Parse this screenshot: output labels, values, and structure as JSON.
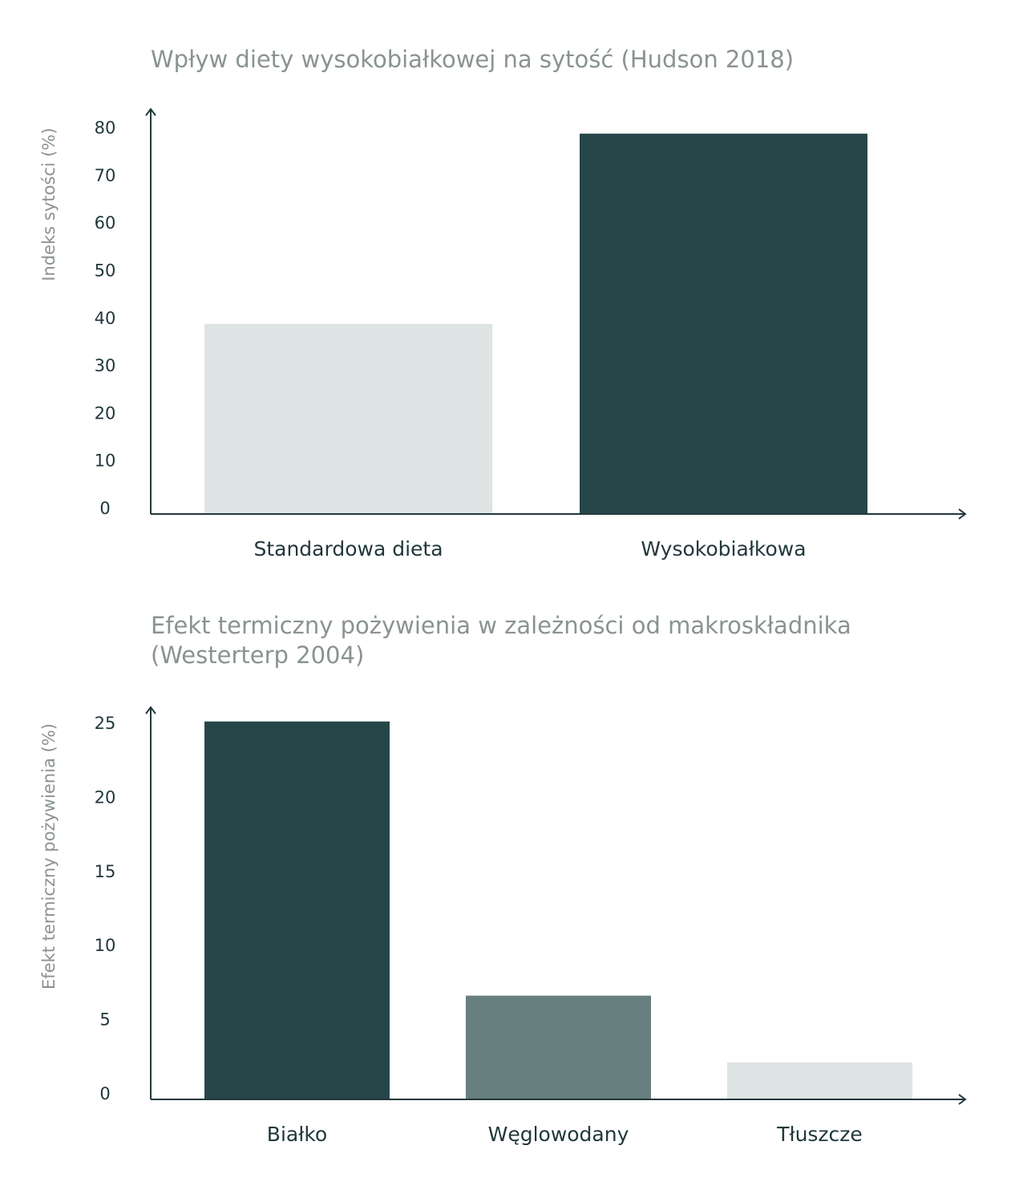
{
  "chart_data": [
    {
      "type": "bar",
      "title": "Wpływ diety wysokobiałkowej na sytość (Hudson 2018)",
      "xlabel": "",
      "ylabel": "Indeks sytości (%)",
      "categories": [
        "Standardowa dieta",
        "Wysokobiałkowa"
      ],
      "values": [
        40,
        80
      ],
      "bar_colors": [
        "#dde4e3",
        "#26464a"
      ],
      "yticks": [
        0,
        10,
        20,
        30,
        40,
        50,
        60,
        70,
        80
      ],
      "ylim": [
        0,
        85
      ],
      "grid": false,
      "legend": "none"
    },
    {
      "type": "bar",
      "title": "Efekt termiczny pożywienia w zależności od makroskładnika (Westerterp 2004)",
      "xlabel": "",
      "ylabel": "Efekt termiczny pożywienia (%)",
      "categories": [
        "Białko",
        "Węglowodany",
        "Tłuszcze"
      ],
      "values": [
        25.5,
        7,
        2.5
      ],
      "bar_colors": [
        "#26464a",
        "#687f7f",
        "#dde4e3"
      ],
      "yticks": [
        0,
        5,
        10,
        15,
        20,
        25
      ],
      "ylim": [
        0,
        27
      ],
      "grid": false,
      "legend": "none"
    }
  ]
}
